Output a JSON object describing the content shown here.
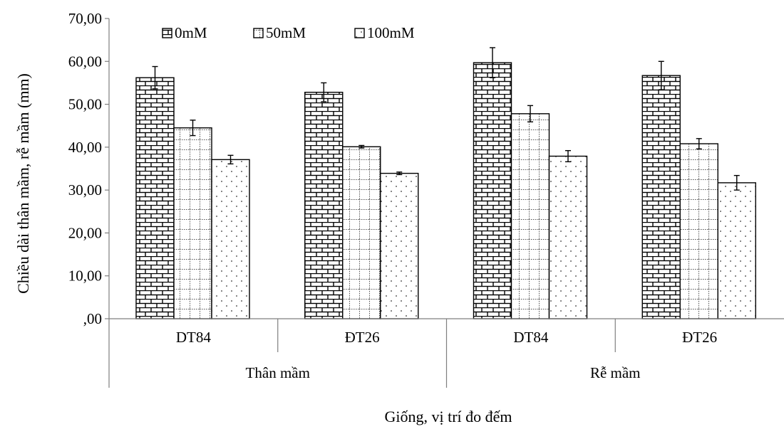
{
  "chart_data": {
    "type": "bar",
    "title": "",
    "ylabel": "Chiều dài thân mầm, rễ mầm (mm)",
    "xlabel": "Giống, vị trí đo đếm",
    "ylim": [
      0,
      70
    ],
    "y_ticks": [
      0,
      10,
      20,
      30,
      40,
      50,
      60,
      70
    ],
    "y_tick_labels": [
      ",00",
      "10,00",
      "20,00",
      "30,00",
      "40,00",
      "50,00",
      "60,00",
      "70,00"
    ],
    "groups": [
      {
        "label": "Thân mầm",
        "categories": [
          "DT84",
          "ĐT26"
        ]
      },
      {
        "label": "Rễ mầm",
        "categories": [
          "DT84",
          "ĐT26"
        ]
      }
    ],
    "categories": [
      "DT84",
      "ĐT26",
      "DT84",
      "ĐT26"
    ],
    "series": [
      {
        "name": "0mM",
        "pattern": "brick",
        "values": [
          56.2,
          52.8,
          59.7,
          56.7
        ],
        "errors": [
          2.6,
          2.2,
          3.5,
          3.3
        ]
      },
      {
        "name": "50mM",
        "pattern": "grid",
        "values": [
          44.5,
          40.1,
          47.8,
          40.8
        ],
        "errors": [
          1.8,
          0.3,
          1.9,
          1.2
        ]
      },
      {
        "name": "100mM",
        "pattern": "dots",
        "values": [
          37.1,
          33.9,
          37.9,
          31.7
        ],
        "errors": [
          1.0,
          0.3,
          1.3,
          1.7
        ]
      }
    ],
    "legend_position": "top-left",
    "grid": false,
    "colors": {
      "fill": "#ffffff",
      "stroke": "#000000",
      "axis": "#7f7f7f"
    }
  }
}
